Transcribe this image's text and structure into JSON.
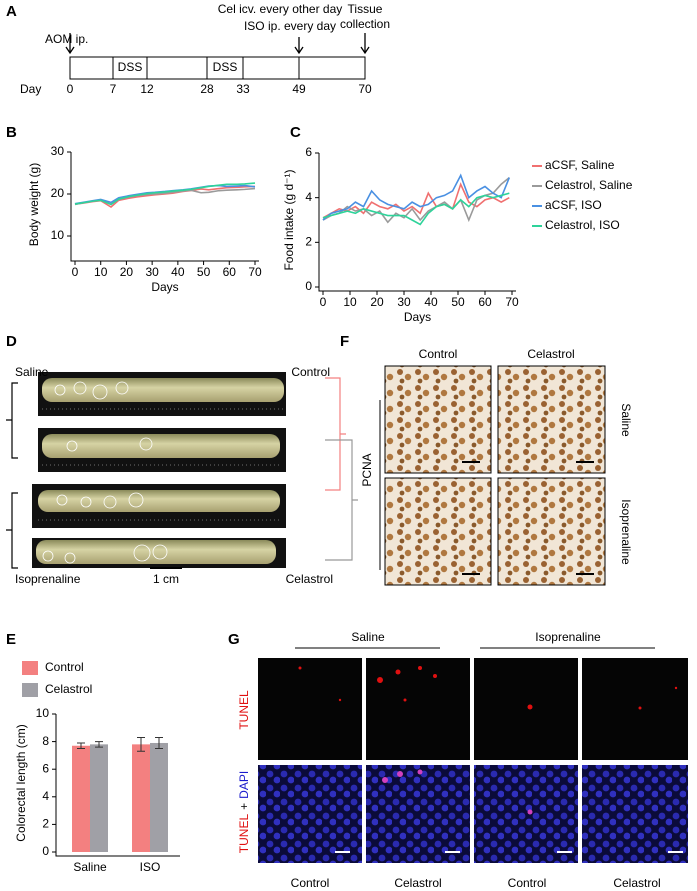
{
  "panel_labels": [
    "A",
    "B",
    "C",
    "D",
    "E",
    "F",
    "G"
  ],
  "timeline": {
    "aom": "AOM ip.",
    "cel": "Cel icv. every other day",
    "iso": "ISO ip. every day",
    "tissue": [
      "Tissue",
      "collection"
    ],
    "segments": [
      "DSS",
      "DSS"
    ],
    "day_label": "Day",
    "days": [
      0,
      7,
      12,
      28,
      33,
      49,
      70
    ]
  },
  "chart_data": [
    {
      "type": "line",
      "x_label": "Days",
      "y_label": "Body weight (g)",
      "x": [
        0,
        3,
        7,
        10,
        14,
        17,
        21,
        24,
        28,
        31,
        35,
        38,
        42,
        45,
        49,
        52,
        56,
        59,
        63,
        66,
        70
      ],
      "series": [
        {
          "name": "aCSF, Saline",
          "color": "#f07070",
          "values": [
            17.6,
            17.8,
            18.2,
            18.4,
            16.9,
            18.5,
            19.0,
            19.3,
            19.6,
            19.8,
            20.0,
            20.2,
            20.6,
            20.8,
            21.2,
            21.0,
            21.3,
            21.5,
            21.6,
            21.7,
            21.8
          ]
        },
        {
          "name": "Celastrol, Saline",
          "color": "#9a9a9a",
          "values": [
            17.5,
            17.9,
            18.3,
            18.6,
            17.6,
            18.7,
            19.3,
            19.6,
            19.9,
            20.0,
            20.2,
            20.4,
            20.7,
            20.9,
            20.3,
            20.4,
            20.8,
            20.9,
            21.0,
            21.1,
            21.3
          ]
        },
        {
          "name": "aCSF, ISO",
          "color": "#4a90e2",
          "values": [
            17.7,
            18.0,
            18.4,
            18.7,
            18.0,
            19.1,
            19.6,
            19.9,
            20.3,
            20.4,
            20.6,
            20.8,
            21.0,
            21.2,
            21.6,
            21.9,
            22.0,
            21.8,
            21.9,
            22.0,
            21.7
          ]
        },
        {
          "name": "Celastrol, ISO",
          "color": "#2ed39a",
          "values": [
            17.6,
            17.9,
            18.3,
            18.5,
            17.5,
            18.8,
            19.4,
            19.7,
            20.1,
            20.3,
            20.5,
            20.7,
            20.9,
            21.1,
            21.5,
            21.8,
            22.1,
            22.3,
            22.3,
            22.4,
            22.6
          ]
        }
      ],
      "xlim": [
        0,
        70
      ],
      "xticks": [
        0,
        10,
        20,
        30,
        40,
        50,
        60,
        70
      ],
      "ylim": [
        5,
        30
      ],
      "yticks": [
        10,
        20,
        30
      ]
    },
    {
      "type": "line",
      "x_label": "Days",
      "y_label": "Food intake (g d⁻¹)",
      "legend": "right",
      "x": [
        0,
        3,
        6,
        9,
        12,
        15,
        18,
        21,
        24,
        27,
        30,
        33,
        36,
        39,
        42,
        45,
        48,
        51,
        54,
        57,
        60,
        63,
        66,
        69
      ],
      "series": [
        {
          "name": "aCSF, Saline",
          "color": "#f07070",
          "values": [
            3.1,
            3.3,
            3.5,
            3.4,
            3.6,
            3.3,
            3.8,
            3.6,
            3.5,
            3.7,
            3.4,
            3.6,
            3.3,
            4.2,
            3.6,
            3.7,
            3.5,
            4.6,
            3.8,
            3.6,
            3.9,
            4.0,
            3.8,
            4.0
          ]
        },
        {
          "name": "Celastrol, Saline",
          "color": "#9a9a9a",
          "values": [
            3.0,
            3.2,
            3.3,
            3.6,
            3.4,
            3.5,
            3.2,
            3.4,
            2.9,
            3.3,
            3.1,
            3.5,
            3.0,
            3.4,
            3.6,
            3.8,
            3.5,
            3.9,
            3.0,
            3.9,
            4.1,
            4.2,
            4.6,
            4.9
          ]
        },
        {
          "name": "aCSF, ISO",
          "color": "#4a90e2",
          "values": [
            3.0,
            3.3,
            3.4,
            3.5,
            3.8,
            3.6,
            4.3,
            3.9,
            3.7,
            3.6,
            3.5,
            3.8,
            3.6,
            3.7,
            4.0,
            4.1,
            4.3,
            5.0,
            4.0,
            4.3,
            4.5,
            4.2,
            4.0,
            4.9
          ]
        },
        {
          "name": "Celastrol, ISO",
          "color": "#2ed39a",
          "values": [
            3.1,
            3.2,
            3.3,
            3.4,
            3.3,
            3.5,
            3.4,
            3.3,
            3.2,
            3.2,
            3.2,
            3.0,
            2.8,
            3.3,
            3.6,
            3.7,
            3.5,
            3.9,
            3.6,
            4.0,
            4.1,
            4.0,
            4.1,
            4.2
          ]
        }
      ],
      "xlim": [
        0,
        70
      ],
      "xticks": [
        0,
        10,
        20,
        30,
        40,
        50,
        60,
        70
      ],
      "ylim": [
        0,
        6
      ],
      "yticks": [
        0,
        2,
        4,
        6
      ]
    },
    {
      "type": "bar",
      "y_label": "Colorectal length (cm)",
      "legend": "top",
      "categories": [
        "Saline",
        "ISO"
      ],
      "series": [
        {
          "name": "Control",
          "color": "#f38080",
          "values": [
            7.7,
            7.8
          ],
          "errors": [
            0.2,
            0.5
          ]
        },
        {
          "name": "Celastrol",
          "color": "#a0a0a6",
          "values": [
            7.8,
            7.9
          ],
          "errors": [
            0.2,
            0.4
          ]
        }
      ],
      "ylim": [
        0,
        10
      ],
      "yticks": [
        0,
        2,
        4,
        6,
        8,
        10
      ]
    }
  ],
  "photo_d": {
    "saline": "Saline",
    "control": "Control",
    "isoprenaline": "Isoprenaline",
    "celastrol": "Celastrol",
    "scale": "1 cm"
  },
  "pcna_f": {
    "columns": [
      "Control",
      "Celastrol"
    ],
    "rows": [
      "Saline",
      "Isoprenaline"
    ],
    "stain": "PCNA"
  },
  "tunel_g": {
    "groups": [
      "Saline",
      "Isoprenaline"
    ],
    "rows": [
      [
        "TUNEL"
      ],
      [
        "TUNEL",
        "+",
        "DAPI"
      ]
    ],
    "columns": [
      "Control",
      "Celastrol",
      "Control",
      "Celastrol"
    ]
  }
}
